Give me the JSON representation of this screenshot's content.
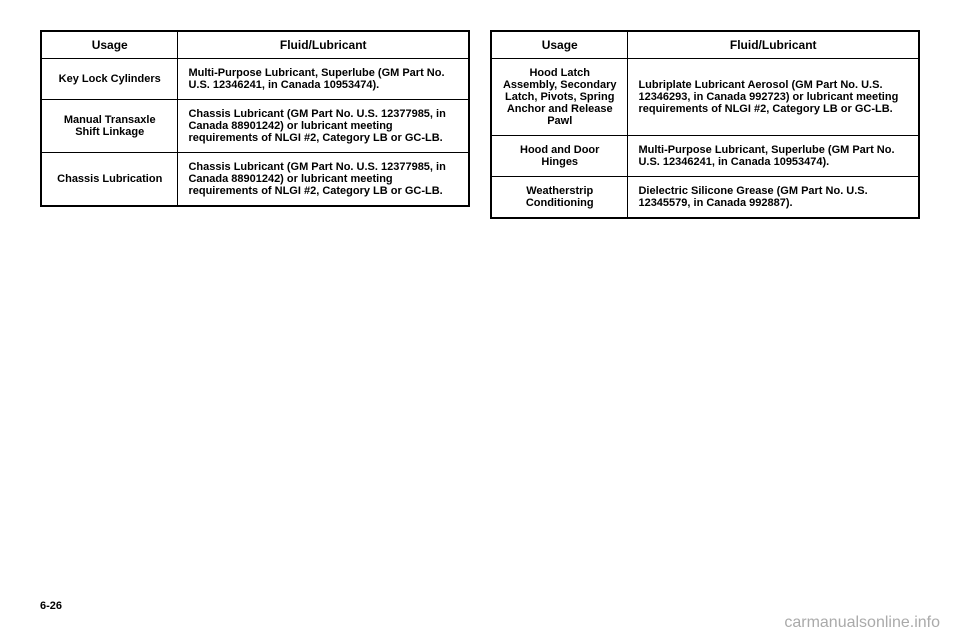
{
  "left_table": {
    "headers": [
      "Usage",
      "Fluid/Lubricant"
    ],
    "rows": [
      {
        "usage": "Key Lock Cylinders",
        "fluid": "Multi-Purpose Lubricant, Superlube (GM Part No. U.S. 12346241, in Canada 10953474)."
      },
      {
        "usage": "Manual Transaxle Shift Linkage",
        "fluid": "Chassis Lubricant (GM Part No. U.S. 12377985, in Canada 88901242) or lubricant meeting requirements of NLGI #2, Category LB or GC-LB."
      },
      {
        "usage": "Chassis Lubrication",
        "fluid": "Chassis Lubricant (GM Part No. U.S. 12377985, in Canada 88901242) or lubricant meeting requirements of NLGI #2, Category LB or GC-LB."
      }
    ]
  },
  "right_table": {
    "headers": [
      "Usage",
      "Fluid/Lubricant"
    ],
    "rows": [
      {
        "usage": "Hood Latch Assembly, Secondary Latch, Pivots, Spring Anchor and Release Pawl",
        "fluid": "Lubriplate Lubricant Aerosol (GM Part No. U.S. 12346293, in Canada 992723) or lubricant meeting requirements of NLGI #2, Category LB or GC-LB."
      },
      {
        "usage": "Hood and Door Hinges",
        "fluid": "Multi-Purpose Lubricant, Superlube (GM Part No. U.S. 12346241, in Canada 10953474)."
      },
      {
        "usage": "Weatherstrip Conditioning",
        "fluid": "Dielectric Silicone Grease (GM Part No. U.S. 12345579, in Canada 992887)."
      }
    ]
  },
  "page_number": "6-26",
  "watermark": "carmanualsonline.info"
}
